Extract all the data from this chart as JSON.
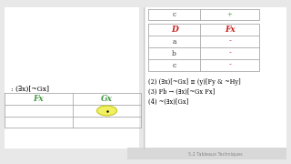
{
  "bg_color": "#e8e8e8",
  "page_bg": "#ffffff",
  "footer_text": "5.2 Tableaux Techniques",
  "left_formula": ": (∃x)[~Gx]",
  "left_col1": "Fx",
  "left_col2": "Gx",
  "right_table_header_col1": "D",
  "right_table_header_col2": "Fx",
  "right_rows": [
    "a",
    "b",
    "c"
  ],
  "right_row_c_top": "c",
  "right_row_c_plus": "+",
  "step2": "(2) (∃x)[~Gx] ≡ (y)[Fy & ~Hy]",
  "step3": "(3) Fb → (∃x)[~Gx Fx]",
  "step4": "(4) ~(∃x)[Gx]",
  "formula_color": "#000000",
  "green_color": "#4a9a4a",
  "red_color": "#cc2222",
  "dash_color": "#cc2222",
  "grid_color": "#aaaaaa",
  "text_color": "#333333"
}
